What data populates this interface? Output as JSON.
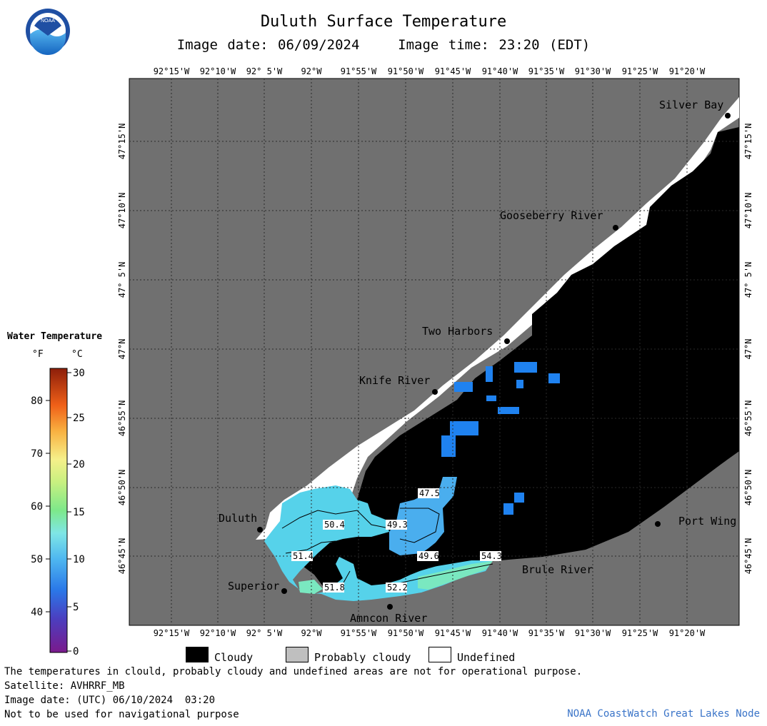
{
  "title": "Duluth Surface Temperature",
  "subtitle": "Image date: 06/09/2024    Image time: 23:20 (EDT)",
  "longitude_ticks": [
    "92°15'W",
    "92°10'W",
    "92° 5'W",
    "92°W",
    "91°55'W",
    "91°50'W",
    "91°45'W",
    "91°40'W",
    "91°35'W",
    "91°30'W",
    "91°25'W",
    "91°20'W"
  ],
  "latitude_ticks": [
    "47°15'N",
    "47°10'N",
    "47° 5'N",
    "47°N",
    "46°55'N",
    "46°50'N",
    "46°45'N"
  ],
  "places": [
    "Silver Bay",
    "Gooseberry River",
    "Two Harbors",
    "Knife River",
    "Duluth",
    "Superior",
    "Amncon River",
    "Brule River",
    "Port Wing"
  ],
  "temperature_labels": [
    "47.5",
    "50.4",
    "49.3",
    "51.4",
    "49.6",
    "54.3",
    "51.8",
    "52.2"
  ],
  "legend": {
    "title": "Water Temperature",
    "unit_f": "°F",
    "unit_c": "°C",
    "f_ticks": [
      "80",
      "70",
      "60",
      "50",
      "40"
    ],
    "c_ticks": [
      "30",
      "25",
      "20",
      "15",
      "10",
      "5",
      "0"
    ]
  },
  "key": {
    "cloudy": "Cloudy",
    "probably_cloudy": "Probably cloudy",
    "undefined": "Undefined"
  },
  "colors": {
    "land": "#707070",
    "cloud": "#000000",
    "undefined": "#ffffff",
    "probably_cloudy": "#bfbfbf",
    "credit": "#3a74c8"
  },
  "footer": {
    "line1": "The temperatures in clould, probably cloudy and undefined areas are not for operational purpose.",
    "line2": "Satellite: AVHRRF_MB",
    "line3": "Image date: (UTC) 06/10/2024  03:20",
    "line4": "Not to be used for navigational purpose",
    "credit": "NOAA CoastWatch Great Lakes Node"
  },
  "logo_text": "NOAA"
}
